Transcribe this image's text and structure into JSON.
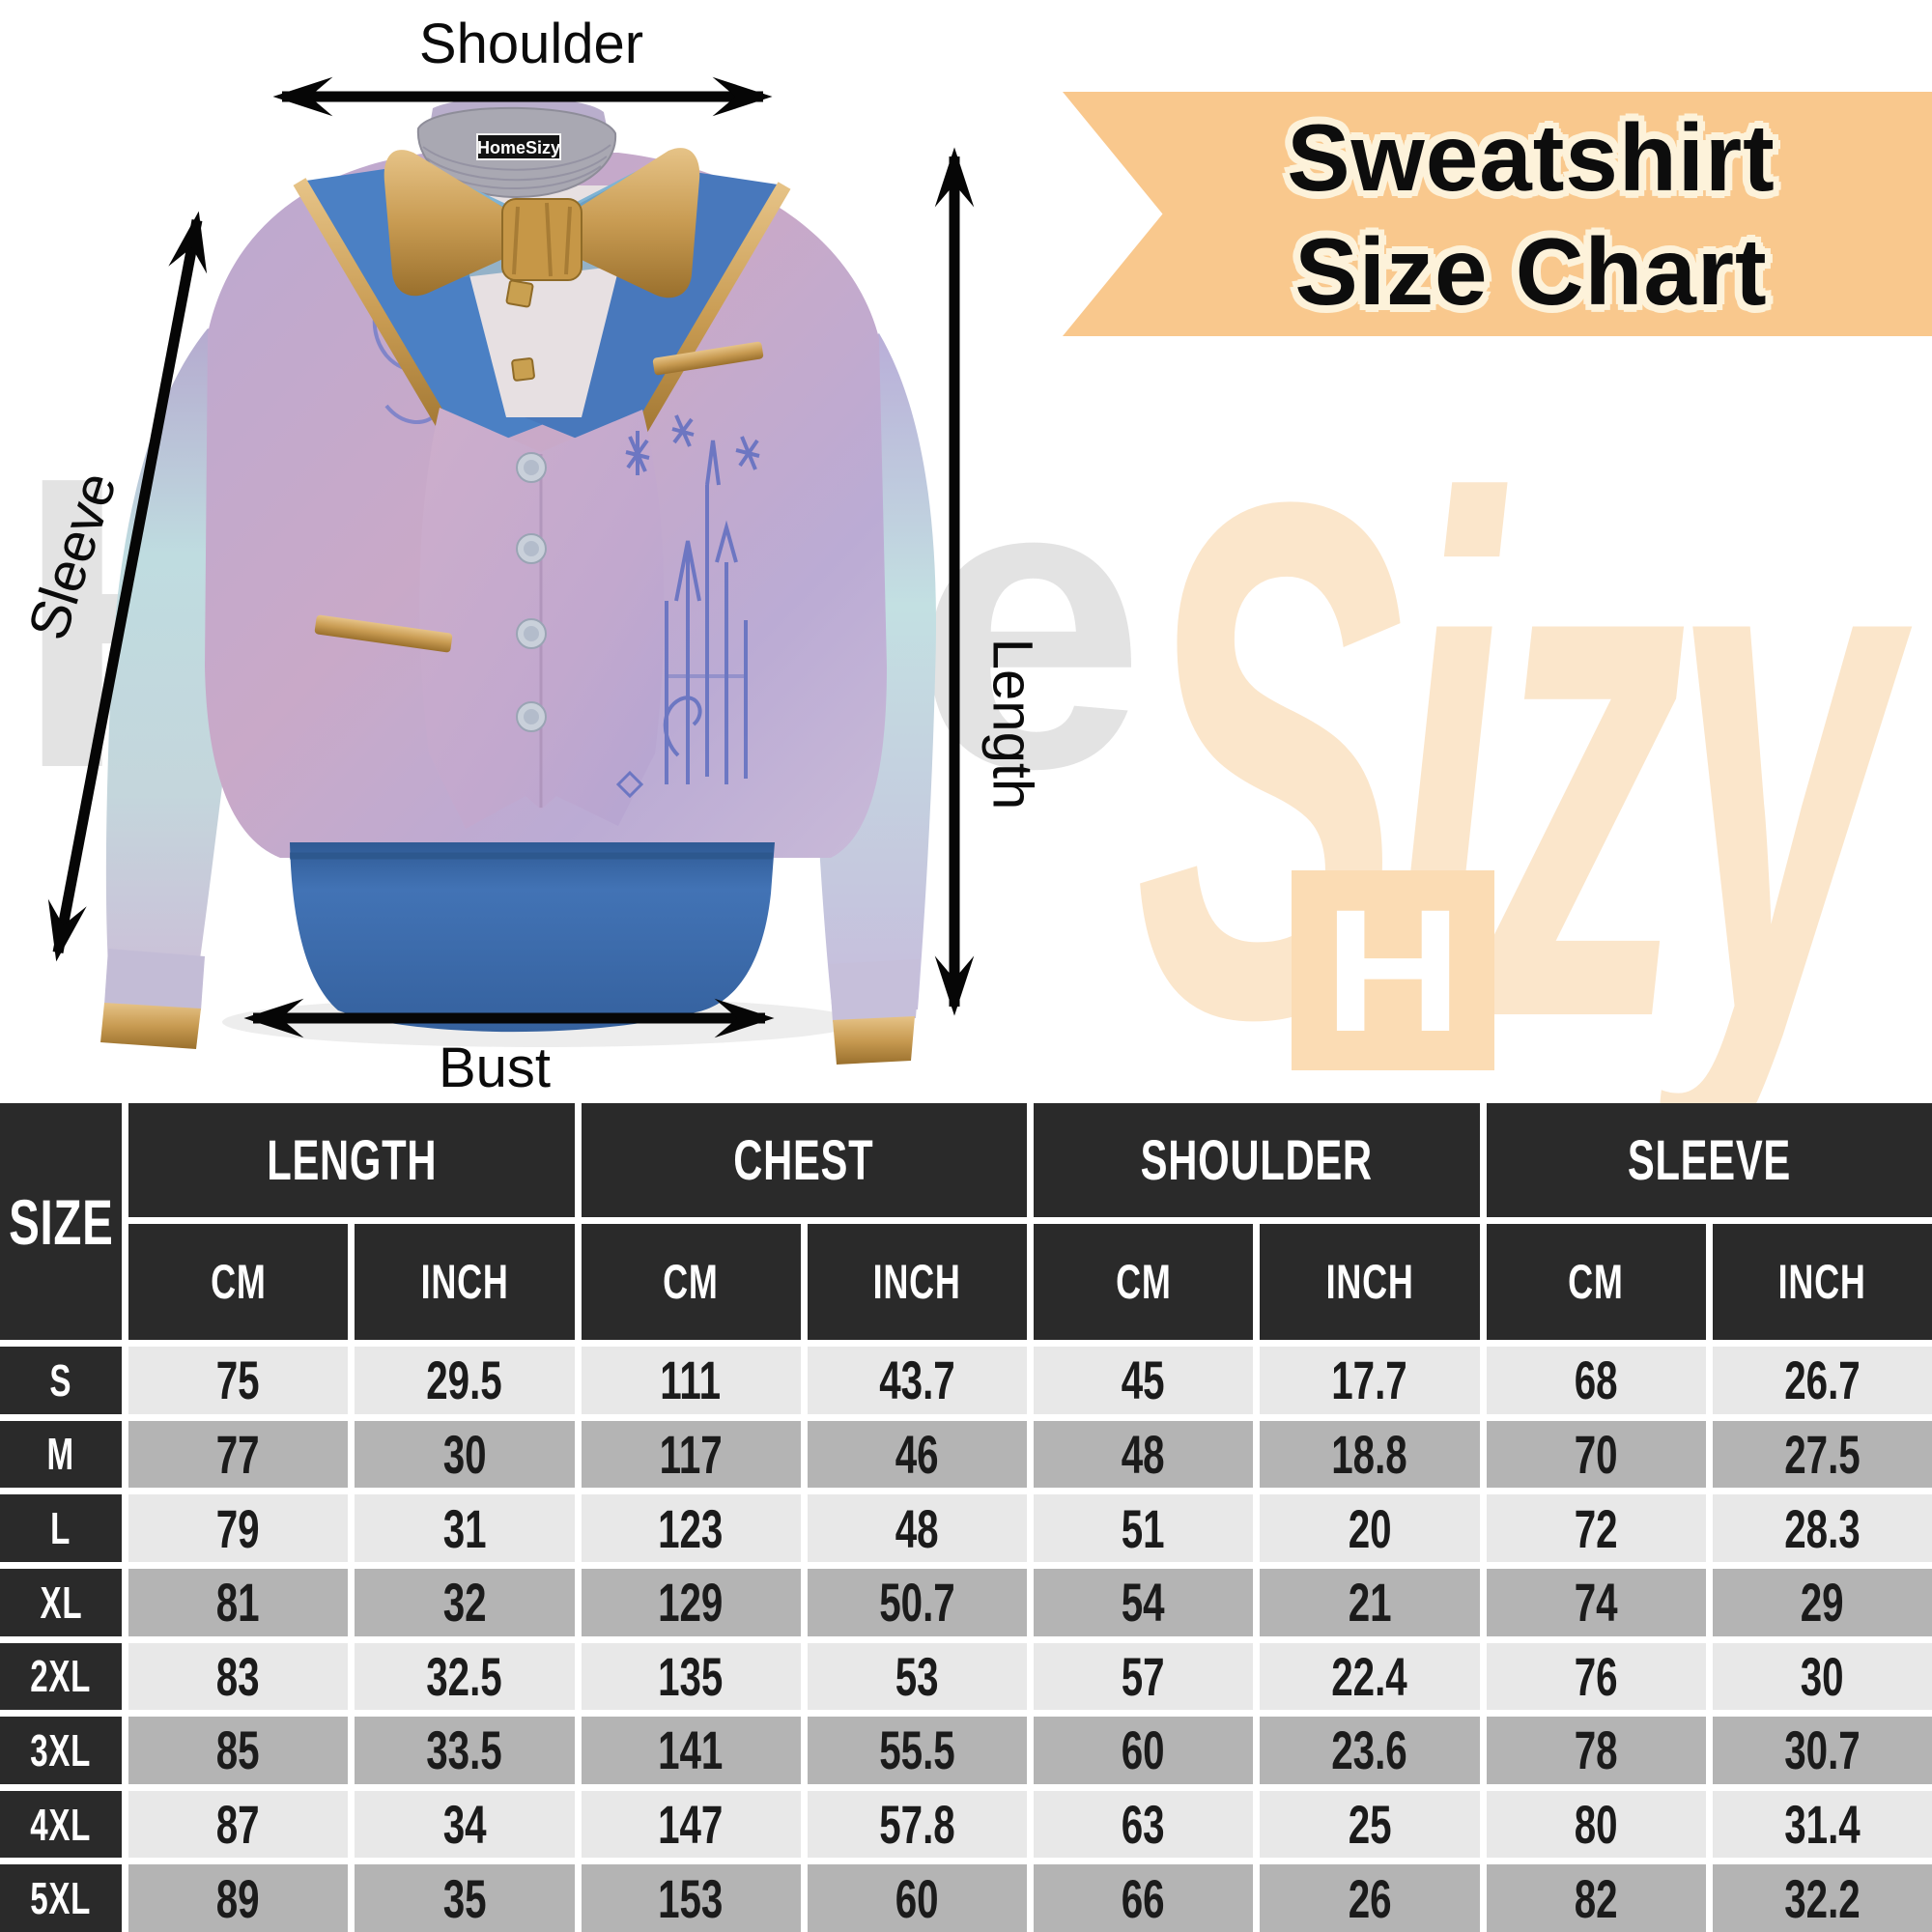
{
  "shirt_labels": {
    "shoulder": "Shoulder",
    "sleeve": "Sleeve",
    "length": "Length",
    "bust": "Bust"
  },
  "collar_tag": {
    "text": "HomeSizy"
  },
  "banner": {
    "line1": "Sweatshirt",
    "line2": "Size Chart",
    "bg_color": "#F9C88D",
    "outline_color": "#FDF2DA",
    "text_color": "#0D0D0D"
  },
  "watermark": {
    "part1": "Home",
    "part2": "Sizy",
    "part1_color": "#E3E3E3",
    "part2_color": "#FBE6CB"
  },
  "logo": {
    "letter": "H",
    "bg_color": "#FBDCB4",
    "letter_color": "#FFFFFF"
  },
  "shirt_colors": {
    "lavender": "#B7ABD2",
    "pink": "#C9A9C8",
    "aqua": "#BFDCE0",
    "lapel_blue": "#4B80C4",
    "gold": "#C89B52",
    "waistband_blue": "#3B6BAC",
    "collar_gray": "#A9A8B2",
    "doodle_blue": "#5F6EC0"
  },
  "size_table": {
    "corner_label": "SIZE",
    "groups": [
      "LENGTH",
      "CHEST",
      "SHOULDER",
      "SLEEVE"
    ],
    "units": [
      "CM",
      "INCH",
      "CM",
      "INCH",
      "CM",
      "INCH",
      "CM",
      "INCH"
    ],
    "rows": [
      {
        "size": "S",
        "values": [
          "75",
          "29.5",
          "111",
          "43.7",
          "45",
          "17.7",
          "68",
          "26.7"
        ]
      },
      {
        "size": "M",
        "values": [
          "77",
          "30",
          "117",
          "46",
          "48",
          "18.8",
          "70",
          "27.5"
        ]
      },
      {
        "size": "L",
        "values": [
          "79",
          "31",
          "123",
          "48",
          "51",
          "20",
          "72",
          "28.3"
        ]
      },
      {
        "size": "XL",
        "values": [
          "81",
          "32",
          "129",
          "50.7",
          "54",
          "21",
          "74",
          "29"
        ]
      },
      {
        "size": "2XL",
        "values": [
          "83",
          "32.5",
          "135",
          "53",
          "57",
          "22.4",
          "76",
          "30"
        ]
      },
      {
        "size": "3XL",
        "values": [
          "85",
          "33.5",
          "141",
          "55.5",
          "60",
          "23.6",
          "78",
          "30.7"
        ]
      },
      {
        "size": "4XL",
        "values": [
          "87",
          "34",
          "147",
          "57.8",
          "63",
          "25",
          "80",
          "31.4"
        ]
      },
      {
        "size": "5XL",
        "values": [
          "89",
          "35",
          "153",
          "60",
          "66",
          "26",
          "82",
          "32.2"
        ]
      }
    ],
    "colors": {
      "header_bg": "#2A2A2A",
      "header_text": "#FFFFFF",
      "row_light": "#E8E8E8",
      "row_dark": "#B4B4B4",
      "value_text": "#1B1B1B"
    }
  }
}
